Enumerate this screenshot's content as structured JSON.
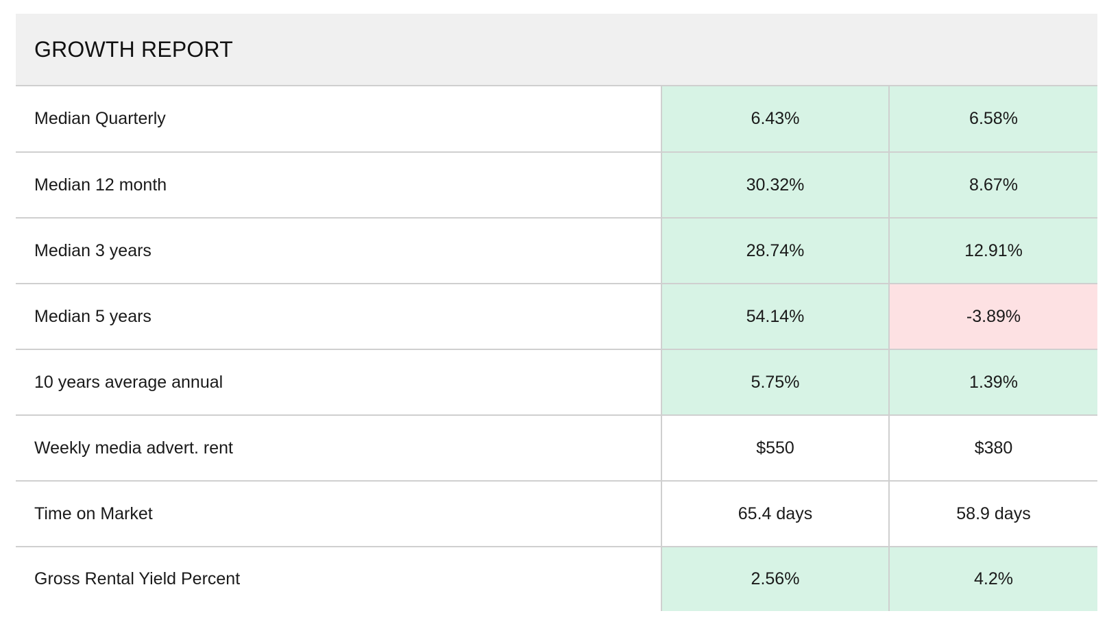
{
  "report": {
    "title": "GROWTH REPORT"
  },
  "colors": {
    "header_bg": "#f0f0f0",
    "positive_bg": "#d7f3e5",
    "negative_bg": "#fde1e3",
    "border": "#cfcfcf"
  },
  "rows": [
    {
      "label": "Median Quarterly",
      "v1": "6.43%",
      "v1_status": "positive",
      "v2": "6.58%",
      "v2_status": "positive"
    },
    {
      "label": "Median 12 month",
      "v1": "30.32%",
      "v1_status": "positive",
      "v2": "8.67%",
      "v2_status": "positive"
    },
    {
      "label": "Median 3 years",
      "v1": "28.74%",
      "v1_status": "positive",
      "v2": "12.91%",
      "v2_status": "positive"
    },
    {
      "label": "Median 5 years",
      "v1": "54.14%",
      "v1_status": "positive",
      "v2": "-3.89%",
      "v2_status": "negative"
    },
    {
      "label": "10 years average annual",
      "v1": "5.75%",
      "v1_status": "positive",
      "v2": "1.39%",
      "v2_status": "positive"
    },
    {
      "label": "Weekly media advert. rent",
      "v1": "$550",
      "v1_status": "neutral",
      "v2": "$380",
      "v2_status": "neutral"
    },
    {
      "label": "Time on Market",
      "v1": "65.4 days",
      "v1_status": "neutral",
      "v2": "58.9 days",
      "v2_status": "neutral"
    },
    {
      "label": "Gross Rental Yield Percent",
      "v1": "2.56%",
      "v1_status": "positive",
      "v2": "4.2%",
      "v2_status": "positive"
    }
  ]
}
